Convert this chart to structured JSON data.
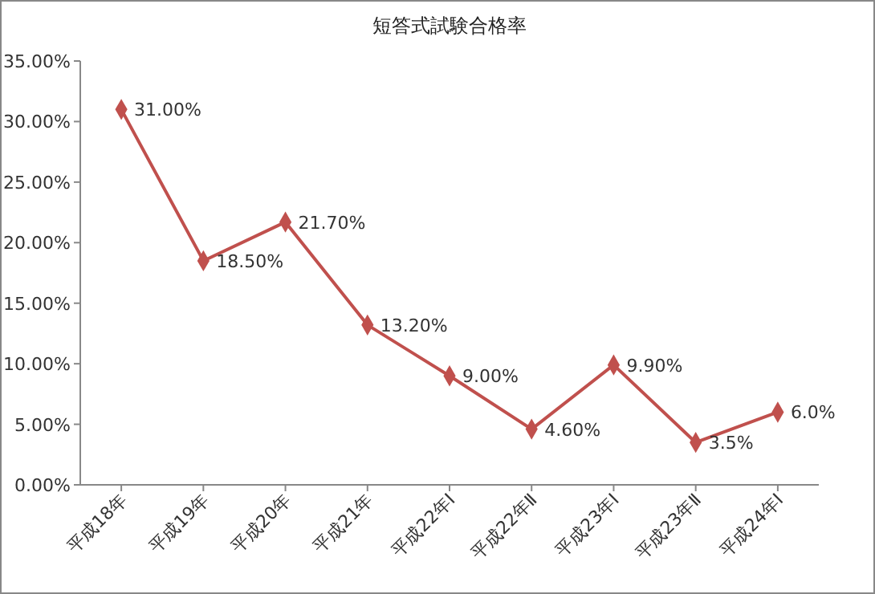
{
  "chart_data": {
    "type": "line",
    "title": "短答式試験合格率",
    "categories": [
      "平成18年",
      "平成19年",
      "平成20年",
      "平成21年",
      "平成22年Ⅰ",
      "平成22年Ⅱ",
      "平成23年Ⅰ",
      "平成23年Ⅱ",
      "平成24年Ⅰ"
    ],
    "series": [
      {
        "color": "#c0504d",
        "values": [
          31,
          18.5,
          21.7,
          13.2,
          9,
          4.6,
          9.9,
          3.5,
          6
        ],
        "value_labels": [
          "31.00%",
          "18.50%",
          "21.70%",
          "13.20%",
          "9.00%",
          "4.60%",
          "9.90%",
          "3.5%",
          "6.0%"
        ]
      }
    ],
    "ylim": [
      0,
      35
    ],
    "yticks": [
      {
        "value": 0,
        "label": "0.00%"
      },
      {
        "value": 5,
        "label": "5.00%"
      },
      {
        "value": 10,
        "label": "10.00%"
      },
      {
        "value": 15,
        "label": "15.00%"
      },
      {
        "value": 20,
        "label": "20.00%"
      },
      {
        "value": 25,
        "label": "25.00%"
      },
      {
        "value": 30,
        "label": "30.00%"
      },
      {
        "value": 35,
        "label": "35.00%"
      }
    ],
    "marker": "diamond",
    "line_style": "solid"
  }
}
